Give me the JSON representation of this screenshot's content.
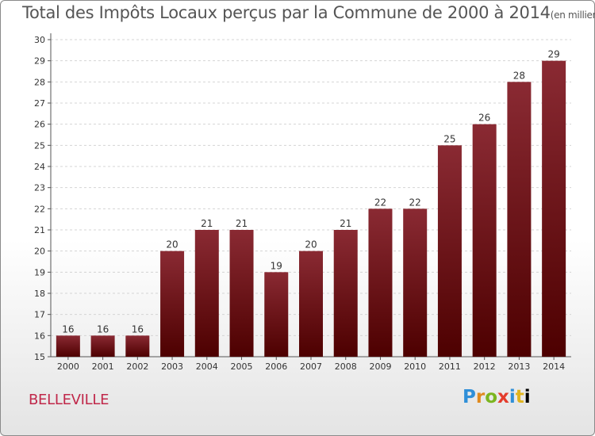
{
  "chart_data": {
    "type": "bar",
    "title": "Total des Impôts Locaux perçus par la Commune de 2000 à 2014",
    "unit": "(en milliers d'€)",
    "categories": [
      "2000",
      "2001",
      "2002",
      "2003",
      "2004",
      "2005",
      "2006",
      "2007",
      "2008",
      "2009",
      "2010",
      "2011",
      "2012",
      "2013",
      "2014"
    ],
    "values": [
      16,
      16,
      16,
      20,
      21,
      21,
      19,
      20,
      21,
      22,
      22,
      25,
      26,
      28,
      29
    ],
    "ylim": [
      15,
      30
    ],
    "yticks": [
      15,
      16,
      17,
      18,
      19,
      20,
      21,
      22,
      23,
      24,
      25,
      26,
      27,
      28,
      29,
      30
    ],
    "xlabel": "",
    "ylabel": "",
    "grid": true,
    "bar_color_top": "#8a2a33",
    "bar_color_bottom": "#4d0000"
  },
  "commune": "BELLEVILLE",
  "logo_letters": [
    "P",
    "r",
    "o",
    "x",
    "i",
    "t",
    "i"
  ]
}
